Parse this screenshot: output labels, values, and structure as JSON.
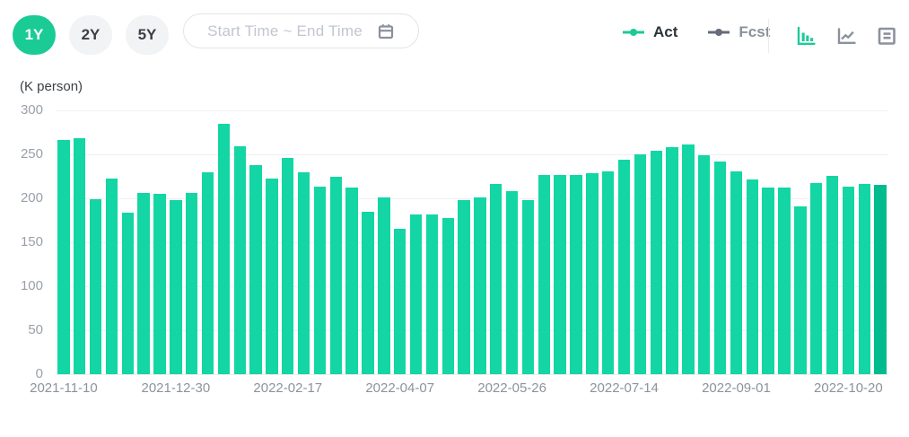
{
  "toolbar": {
    "range_buttons": [
      {
        "label": "1Y",
        "active": true
      },
      {
        "label": "2Y",
        "active": false
      },
      {
        "label": "5Y",
        "active": false
      }
    ],
    "date_input": {
      "placeholder": "Start Time ~ End Time"
    },
    "legend": [
      {
        "label": "Act",
        "marker_color": "#1bcb96",
        "text_color": "#2e3338"
      },
      {
        "label": "Fcst",
        "marker_color": "#666c79",
        "text_color": "#8b919c"
      }
    ],
    "view_icons": [
      {
        "name": "bar-chart-view",
        "active": true
      },
      {
        "name": "line-chart-view",
        "active": false
      },
      {
        "name": "data-table-view",
        "active": false
      }
    ],
    "active_color": "#1ecb9a",
    "inactive_icon_color": "#8b919e"
  },
  "chart_data": {
    "type": "bar",
    "title": "",
    "unit_label": "(K person)",
    "series": [
      {
        "name": "Act",
        "values": [
          266,
          268,
          199,
          222,
          184,
          206,
          205,
          198,
          206,
          230,
          285,
          259,
          238,
          222,
          246,
          230,
          213,
          225,
          212,
          185,
          201,
          165,
          182,
          182,
          178,
          198,
          201,
          216,
          208,
          198,
          227,
          227,
          227,
          229,
          231,
          244,
          250,
          254,
          258,
          261,
          249,
          242,
          231,
          221,
          212,
          212,
          191,
          217,
          226,
          213,
          216,
          215
        ]
      }
    ],
    "x_tick_labels": [
      "2021-11-10",
      "2021-12-30",
      "2022-02-17",
      "2022-04-07",
      "2022-05-26",
      "2022-07-14",
      "2022-09-01",
      "2022-10-20"
    ],
    "x_tick_bar_indices": [
      0,
      7,
      14,
      21,
      28,
      35,
      42,
      49
    ],
    "y_ticks": [
      0,
      50,
      100,
      150,
      200,
      250,
      300
    ],
    "ylim": [
      0,
      300
    ],
    "grid": true,
    "legend_position": "top-right",
    "bar_color": "#13d6a4",
    "last_bar_color": "#00bb8d"
  }
}
